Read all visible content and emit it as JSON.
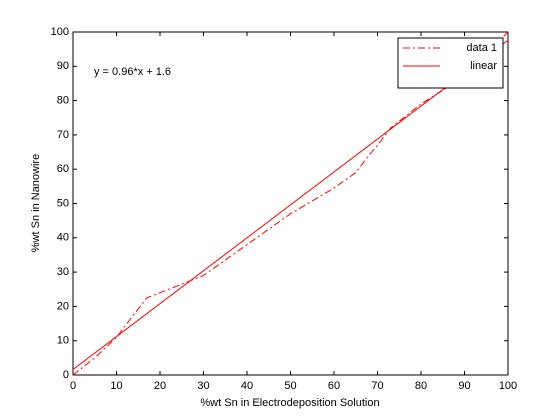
{
  "chart_data": {
    "type": "line",
    "xlabel": "%wt Sn in Electrodeposition Solution",
    "ylabel": "%wt Sn in Nanowire",
    "annotation": "y = 0.96*x + 1.6",
    "series": [
      {
        "name": "data 1",
        "color": "#ff0000",
        "style": "dashdot",
        "x": [
          0,
          5,
          10,
          13,
          17,
          20,
          30,
          40,
          50,
          60,
          65,
          68,
          70,
          73,
          80,
          90,
          100
        ],
        "values": [
          0,
          5,
          11,
          16,
          22.5,
          24,
          29,
          38,
          47,
          54.5,
          59,
          64,
          67,
          72,
          79,
          87,
          100
        ]
      },
      {
        "name": "linear",
        "color": "#ff0000",
        "style": "solid",
        "x": [
          0,
          100
        ],
        "values": [
          1.6,
          97.6
        ]
      }
    ],
    "xlim": [
      0,
      100
    ],
    "ylim": [
      0,
      100
    ],
    "xticks": [
      0,
      10,
      20,
      30,
      40,
      50,
      60,
      70,
      80,
      90,
      100
    ],
    "yticks": [
      0,
      10,
      20,
      30,
      40,
      50,
      60,
      70,
      80,
      90,
      100
    ],
    "legend": "top-right",
    "grid": false
  }
}
